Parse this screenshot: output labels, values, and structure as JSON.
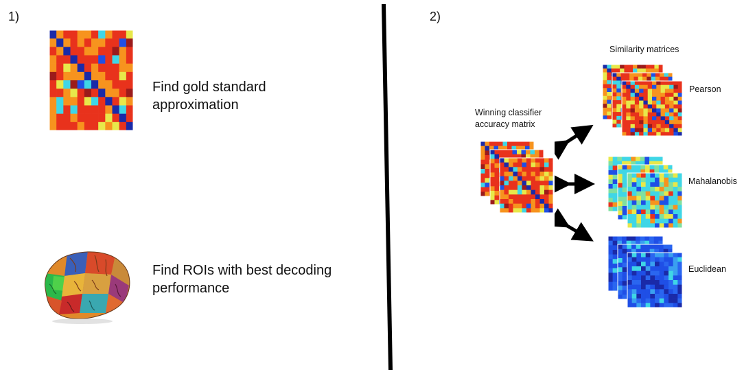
{
  "panel1": {
    "number": "1)",
    "step1_text": "Find gold standard approximation",
    "step1_line1": "Find gold standard",
    "step1_line2": "approximation",
    "step2_line1": "Find ROIs with best decoding",
    "step2_line2": "performance"
  },
  "panel2": {
    "number": "2)",
    "similarity_title": "Similarity matrices",
    "classifier_line1": "Winning classifier",
    "classifier_line2": "accuracy matrix",
    "matrices": [
      "Pearson",
      "Mahalanobis",
      "Euclidean"
    ]
  },
  "colors": {
    "jet_red": "#e8321c",
    "jet_orange": "#f7931e",
    "jet_yellow": "#e8e84a",
    "jet_cyan": "#3fd6e6",
    "jet_blue": "#1f4fe6",
    "jet_darkblue": "#1a2aa8",
    "jet_darkred": "#9b1b1b",
    "divider": "#000000"
  }
}
